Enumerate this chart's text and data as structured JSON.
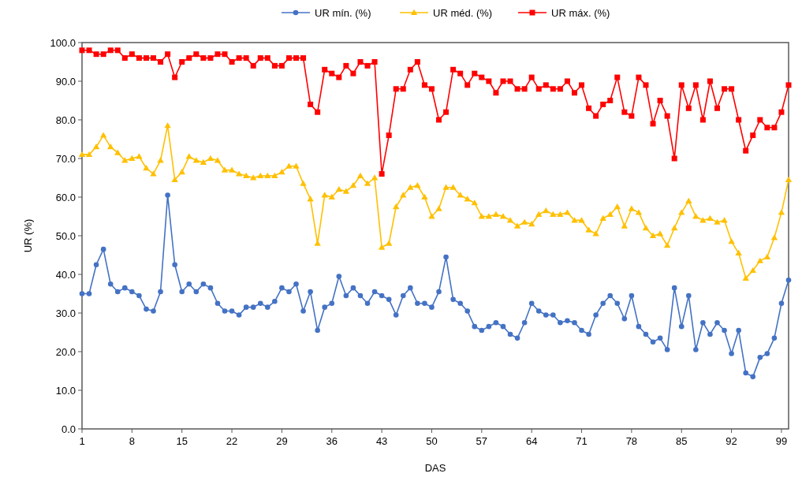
{
  "chart_data": {
    "type": "line",
    "xlabel": "DAS",
    "ylabel": "UR (%)",
    "legend": "top",
    "grid": false,
    "x": [
      1,
      2,
      3,
      4,
      5,
      6,
      7,
      8,
      9,
      10,
      11,
      12,
      13,
      14,
      15,
      16,
      17,
      18,
      19,
      20,
      21,
      22,
      23,
      24,
      25,
      26,
      27,
      28,
      29,
      30,
      31,
      32,
      33,
      34,
      35,
      36,
      37,
      38,
      39,
      40,
      41,
      42,
      43,
      44,
      45,
      46,
      47,
      48,
      49,
      50,
      51,
      52,
      53,
      54,
      55,
      56,
      57,
      58,
      59,
      60,
      61,
      62,
      63,
      64,
      65,
      66,
      67,
      68,
      69,
      70,
      71,
      72,
      73,
      74,
      75,
      76,
      77,
      78,
      79,
      80,
      81,
      82,
      83,
      84,
      85,
      86,
      87,
      88,
      89,
      90,
      91,
      92,
      93,
      94,
      95,
      96,
      97,
      98,
      99,
      100
    ],
    "xlim": [
      1,
      100
    ],
    "xticks": [
      1,
      8,
      15,
      22,
      29,
      36,
      43,
      50,
      57,
      64,
      71,
      78,
      85,
      92,
      99
    ],
    "ylim": [
      0,
      100
    ],
    "yticks": [
      {
        "value": 0,
        "label": "0.0"
      },
      {
        "value": 10,
        "label": "10.0"
      },
      {
        "value": 20,
        "label": "20.0"
      },
      {
        "value": 30,
        "label": "30.0"
      },
      {
        "value": 40,
        "label": "40.0"
      },
      {
        "value": 50,
        "label": "50.0"
      },
      {
        "value": 60,
        "label": "60.0"
      },
      {
        "value": 70,
        "label": "70.0"
      },
      {
        "value": 80,
        "label": "80.0"
      },
      {
        "value": 90,
        "label": "90.0"
      },
      {
        "value": 100,
        "label": "100.0"
      }
    ],
    "series": [
      {
        "name": "UR mín. (%)",
        "color": "#4472c4",
        "marker": "circle",
        "values": [
          35,
          35,
          42.5,
          46.5,
          37.5,
          35.5,
          36.5,
          35.5,
          34.5,
          31,
          30.5,
          35.5,
          60.5,
          42.5,
          35.5,
          37.5,
          35.5,
          37.5,
          36.5,
          32.5,
          30.5,
          30.5,
          29.5,
          31.5,
          31.5,
          32.5,
          31.5,
          33,
          36.5,
          35.5,
          37.5,
          30.5,
          35.5,
          25.5,
          31.5,
          32.5,
          39.5,
          34.5,
          36.5,
          34.5,
          32.5,
          35.5,
          34.5,
          33.5,
          29.5,
          34.5,
          36.5,
          32.5,
          32.5,
          31.5,
          35.5,
          44.5,
          33.5,
          32.5,
          30.5,
          26.5,
          25.5,
          26.5,
          27.5,
          26.5,
          24.5,
          23.5,
          27.5,
          32.5,
          30.5,
          29.5,
          29.5,
          27.5,
          28,
          27.5,
          25.5,
          24.5,
          29.5,
          32.5,
          34.5,
          32.5,
          28.5,
          34.5,
          26.5,
          24.5,
          22.5,
          23.5,
          20.5,
          36.5,
          26.5,
          34.5,
          20.5,
          27.5,
          24.5,
          27.5,
          25.5,
          19.5,
          25.5,
          14.5,
          13.5,
          18.5,
          19.5,
          23.5,
          32.5,
          38.5
        ]
      },
      {
        "name": "UR méd. (%)",
        "color": "#ffc000",
        "marker": "triangle",
        "values": [
          71,
          71,
          73,
          76,
          73,
          71.5,
          69.5,
          70,
          70.5,
          67.5,
          66,
          69.5,
          78.5,
          64.5,
          66.5,
          70.5,
          69.5,
          69,
          70,
          69.5,
          67,
          67,
          66,
          65.5,
          65,
          65.5,
          65.5,
          65.5,
          66.5,
          68,
          68,
          63.5,
          59.5,
          48,
          60.5,
          60,
          62,
          61.5,
          63,
          65.5,
          63.5,
          65,
          47,
          48,
          57.5,
          60.5,
          62.5,
          63,
          60,
          55,
          57,
          62.5,
          62.5,
          60.5,
          59.5,
          58.5,
          55,
          55,
          55.5,
          55,
          54,
          52.5,
          53.5,
          53,
          55.5,
          56.5,
          55.5,
          55.5,
          56,
          54,
          54,
          51.5,
          50.5,
          54.5,
          55.5,
          57.5,
          52.5,
          57,
          56,
          52,
          50,
          50.5,
          47.5,
          52,
          56,
          59,
          55,
          54,
          54.5,
          53.5,
          54,
          48.5,
          45.5,
          39,
          41,
          43.5,
          44.5,
          49.5,
          56,
          64.5
        ]
      },
      {
        "name": "UR máx. (%)",
        "color": "#ff0000",
        "marker": "square",
        "values": [
          98,
          98,
          97,
          97,
          98,
          98,
          96,
          97,
          96,
          96,
          96,
          95,
          97,
          91,
          95,
          96,
          97,
          96,
          96,
          97,
          97,
          95,
          96,
          96,
          94,
          96,
          96,
          94,
          94,
          96,
          96,
          96,
          84,
          82,
          93,
          92,
          91,
          94,
          92,
          95,
          94,
          95,
          66,
          76,
          88,
          88,
          93,
          95,
          89,
          88,
          80,
          82,
          93,
          92,
          89,
          92,
          91,
          90,
          87,
          90,
          90,
          88,
          88,
          91,
          88,
          89,
          88,
          88,
          90,
          87,
          89,
          83,
          81,
          84,
          85,
          91,
          82,
          81,
          91,
          89,
          79,
          85,
          81,
          70,
          89,
          83,
          89,
          80,
          90,
          83,
          88,
          88,
          80,
          72,
          76,
          80,
          78,
          78,
          82,
          89
        ]
      }
    ]
  }
}
